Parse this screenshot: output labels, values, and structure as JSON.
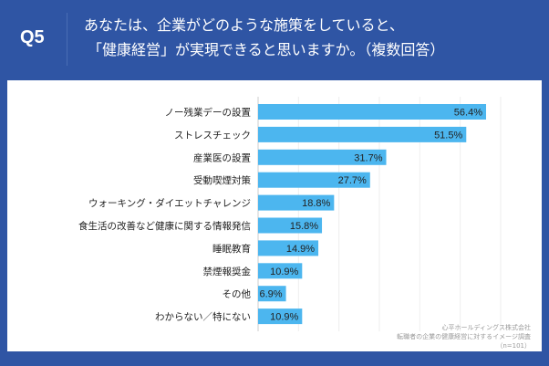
{
  "header": {
    "question_no": "Q5",
    "title_line1": "あなたは、企業がどのような施策をしていると、",
    "title_line2": "「健康経営」が実現できると思いますか。（複数回答）"
  },
  "source": {
    "line1": "心平ホールディングス株式会社",
    "line2": "転職者の企業の健康経営に対するイメージ調査",
    "line3": "（n=101）"
  },
  "colors": {
    "background": "#2f55a4",
    "bar": "#4cb6ef",
    "panel": "#ffffff"
  },
  "chart_data": {
    "type": "bar",
    "orientation": "horizontal",
    "categories": [
      "ノー残業デーの設置",
      "ストレスチェック",
      "産業医の設置",
      "受動喫煙対策",
      "ウォーキング・ダイエットチャレンジ",
      "食生活の改善など健康に関する情報発信",
      "睡眠教育",
      "禁煙報奨金",
      "その他",
      "わからない／特にない"
    ],
    "values": [
      56.4,
      51.5,
      31.7,
      27.7,
      18.8,
      15.8,
      14.9,
      10.9,
      6.9,
      10.9
    ],
    "labels": [
      "56.4%",
      "51.5%",
      "31.7%",
      "27.7%",
      "18.8%",
      "15.8%",
      "14.9%",
      "10.9%",
      "6.9%",
      "10.9%"
    ],
    "xlim": [
      0,
      60
    ],
    "grid": true
  }
}
